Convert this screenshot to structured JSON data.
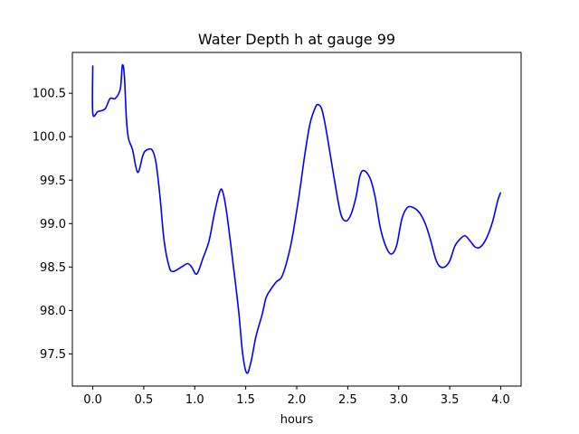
{
  "chart_data": {
    "type": "line",
    "title": "Water Depth h at gauge 99",
    "xlabel": "hours",
    "ylabel": "",
    "xlim": [
      -0.2,
      4.2
    ],
    "ylim": [
      97.13,
      100.97
    ],
    "xticks": [
      0.0,
      0.5,
      1.0,
      1.5,
      2.0,
      2.5,
      3.0,
      3.5,
      4.0
    ],
    "xtick_labels": [
      "0.0",
      "0.5",
      "1.0",
      "1.5",
      "2.0",
      "2.5",
      "3.0",
      "3.5",
      "4.0"
    ],
    "yticks": [
      97.5,
      98.0,
      98.5,
      99.0,
      99.5,
      100.0,
      100.5
    ],
    "ytick_labels": [
      "97.5",
      "98.0",
      "98.5",
      "99.0",
      "99.5",
      "100.0",
      "100.5"
    ],
    "grid": false,
    "series": [
      {
        "color": "#0000ff",
        "points": [
          [
            0.0,
            100.82
          ],
          [
            0.0,
            100.27
          ],
          [
            0.05,
            100.29
          ],
          [
            0.12,
            100.32
          ],
          [
            0.17,
            100.44
          ],
          [
            0.22,
            100.44
          ],
          [
            0.27,
            100.55
          ],
          [
            0.29,
            100.82
          ],
          [
            0.31,
            100.7
          ],
          [
            0.33,
            100.2
          ],
          [
            0.35,
            99.98
          ],
          [
            0.39,
            99.85
          ],
          [
            0.44,
            99.59
          ],
          [
            0.49,
            99.78
          ],
          [
            0.52,
            99.84
          ],
          [
            0.58,
            99.85
          ],
          [
            0.62,
            99.7
          ],
          [
            0.66,
            99.3
          ],
          [
            0.7,
            98.8
          ],
          [
            0.75,
            98.5
          ],
          [
            0.79,
            98.45
          ],
          [
            0.87,
            98.5
          ],
          [
            0.93,
            98.54
          ],
          [
            0.97,
            98.5
          ],
          [
            1.02,
            98.42
          ],
          [
            1.08,
            98.6
          ],
          [
            1.14,
            98.8
          ],
          [
            1.19,
            99.1
          ],
          [
            1.24,
            99.35
          ],
          [
            1.27,
            99.38
          ],
          [
            1.31,
            99.15
          ],
          [
            1.38,
            98.5
          ],
          [
            1.43,
            98.0
          ],
          [
            1.47,
            97.5
          ],
          [
            1.51,
            97.28
          ],
          [
            1.55,
            97.4
          ],
          [
            1.6,
            97.7
          ],
          [
            1.66,
            97.95
          ],
          [
            1.7,
            98.15
          ],
          [
            1.75,
            98.25
          ],
          [
            1.8,
            98.33
          ],
          [
            1.85,
            98.38
          ],
          [
            1.9,
            98.55
          ],
          [
            1.95,
            98.8
          ],
          [
            2.02,
            99.3
          ],
          [
            2.08,
            99.8
          ],
          [
            2.13,
            100.15
          ],
          [
            2.18,
            100.33
          ],
          [
            2.21,
            100.37
          ],
          [
            2.25,
            100.3
          ],
          [
            2.3,
            100.0
          ],
          [
            2.37,
            99.5
          ],
          [
            2.43,
            99.12
          ],
          [
            2.48,
            99.03
          ],
          [
            2.53,
            99.1
          ],
          [
            2.58,
            99.3
          ],
          [
            2.62,
            99.55
          ],
          [
            2.66,
            99.61
          ],
          [
            2.72,
            99.52
          ],
          [
            2.77,
            99.3
          ],
          [
            2.82,
            98.95
          ],
          [
            2.88,
            98.72
          ],
          [
            2.93,
            98.65
          ],
          [
            2.98,
            98.75
          ],
          [
            3.03,
            99.05
          ],
          [
            3.08,
            99.18
          ],
          [
            3.13,
            99.19
          ],
          [
            3.2,
            99.13
          ],
          [
            3.26,
            99.0
          ],
          [
            3.31,
            98.82
          ],
          [
            3.36,
            98.6
          ],
          [
            3.4,
            98.51
          ],
          [
            3.45,
            98.5
          ],
          [
            3.5,
            98.57
          ],
          [
            3.55,
            98.74
          ],
          [
            3.6,
            98.82
          ],
          [
            3.65,
            98.86
          ],
          [
            3.7,
            98.8
          ],
          [
            3.75,
            98.73
          ],
          [
            3.8,
            98.73
          ],
          [
            3.86,
            98.83
          ],
          [
            3.92,
            99.02
          ],
          [
            3.97,
            99.26
          ],
          [
            4.0,
            99.36
          ]
        ]
      }
    ]
  }
}
